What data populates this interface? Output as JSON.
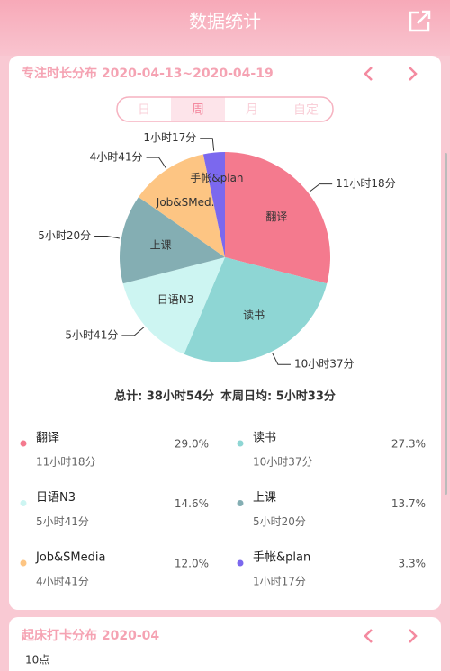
{
  "header": {
    "title": "数据统计"
  },
  "focus_card": {
    "title": "专注时长分布 2020-04-13~2020-04-19",
    "tabs": [
      "日",
      "周",
      "月",
      "自定"
    ],
    "total": "总计: 38小时54分",
    "daily_average": "本周日均: 5小时33分"
  },
  "chart_data": {
    "type": "pie",
    "categories": [
      "翻译",
      "读书",
      "日语N3",
      "上课",
      "Job&SMedia",
      "手帐&plan"
    ],
    "slice_labels": [
      "翻译",
      "读书",
      "日语N3",
      "上课",
      "Job&SMed...",
      "手帐&plan"
    ],
    "durations": [
      "11小时18分",
      "10小时37分",
      "5小时41分",
      "5小时20分",
      "4小时41分",
      "1小时17分"
    ],
    "values": [
      29.0,
      27.3,
      14.6,
      13.7,
      12.0,
      3.3
    ],
    "value_labels": [
      "29.0%",
      "27.3%",
      "14.6%",
      "13.7%",
      "12.0%",
      "3.3%"
    ],
    "colors": [
      "#f47a8e",
      "#8ed6d4",
      "#cdf5f2",
      "#84aeb3",
      "#fdc583",
      "#7b68ee"
    ]
  },
  "wakeup_card": {
    "title": "起床打卡分布 2020-04",
    "y_label": "10点"
  }
}
